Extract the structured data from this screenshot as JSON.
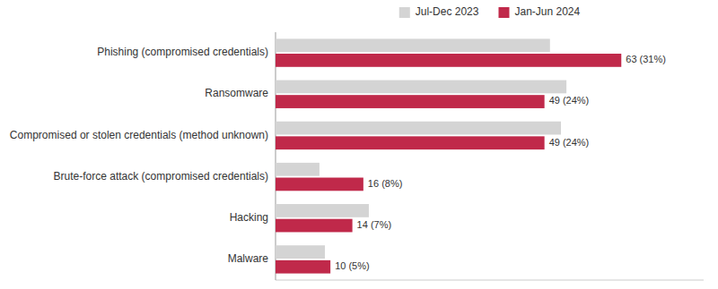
{
  "chart_data": {
    "type": "bar",
    "orientation": "horizontal",
    "categories": [
      "Malware",
      "Hacking",
      "Brute-force attack (compromised credentials)",
      "Compromised or stolen credentials (method unknown)",
      "Ransomware",
      "Phishing (compromised credentials)"
    ],
    "series": [
      {
        "name": "Jul-Dec 2023",
        "color": "#d4d4d4",
        "values": [
          9,
          17,
          8,
          52,
          53,
          50
        ]
      },
      {
        "name": "Jan-Jun 2024",
        "color": "#c0294a",
        "values": [
          10,
          14,
          16,
          49,
          49,
          63
        ],
        "value_labels": [
          "10 (5%)",
          "14 (7%)",
          "16 (8%)",
          "49 (24%)",
          "49 (24%)",
          "63 (31%)"
        ],
        "data_labels": true
      }
    ],
    "xlim": [
      0,
      78
    ],
    "tick_labels": "y",
    "legend": "top",
    "grid": false
  }
}
